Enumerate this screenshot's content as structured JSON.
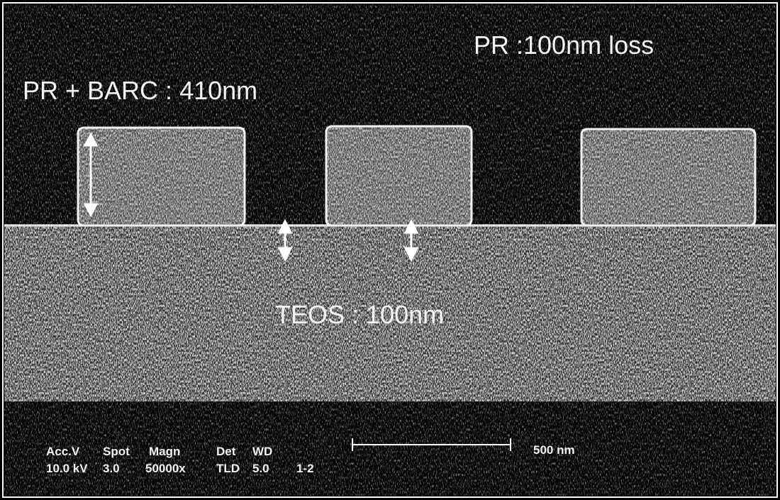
{
  "labels": {
    "top_right": "PR :100nm loss",
    "top_left": "PR + BARC : 410nm",
    "center": "TEOS : 100nm"
  },
  "footer": {
    "headers": [
      "Acc.V",
      "Spot",
      "Magn",
      "Det",
      "WD"
    ],
    "values": [
      "10.0 kV",
      "3.0",
      "50000x",
      "TLD",
      "5.0",
      "1-2"
    ],
    "scale": "500 nm"
  }
}
